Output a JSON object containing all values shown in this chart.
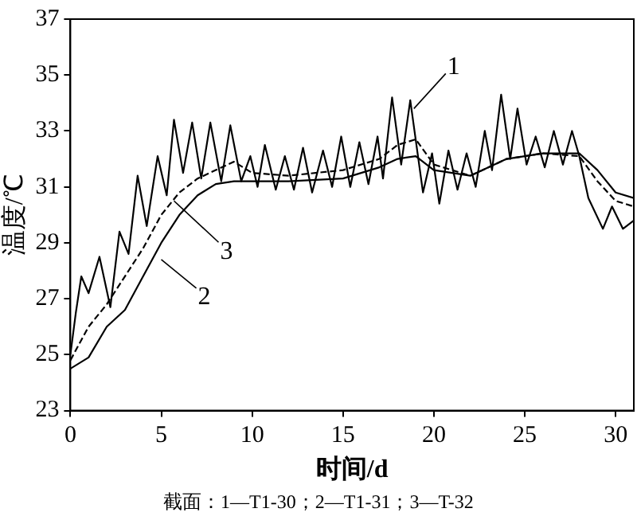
{
  "chart_data": {
    "type": "line",
    "xlabel": "时间/d",
    "ylabel": "温度/℃",
    "xlim": [
      0,
      31
    ],
    "xticks": [
      0,
      5,
      10,
      15,
      20,
      25,
      30
    ],
    "ylim": [
      23,
      37
    ],
    "yticks": [
      23,
      25,
      27,
      29,
      31,
      33,
      35,
      37
    ],
    "grid": false,
    "legend": false,
    "marker": "none",
    "series": [
      {
        "color": "#000000",
        "line_style": "solid",
        "x": [
          0,
          0.3,
          0.6,
          1.0,
          1.6,
          2.2,
          2.7,
          3.2,
          3.7,
          4.2,
          4.8,
          5.3,
          5.7,
          6.2,
          6.7,
          7.2,
          7.7,
          8.3,
          8.8,
          9.4,
          9.9,
          10.3,
          10.7,
          11.3,
          11.8,
          12.3,
          12.8,
          13.3,
          13.9,
          14.4,
          14.9,
          15.4,
          15.9,
          16.4,
          16.9,
          17.2,
          17.7,
          18.2,
          18.7,
          19.4,
          19.9,
          20.3,
          20.8,
          21.3,
          21.8,
          22.3,
          22.8,
          23.2,
          23.7,
          24.2,
          24.6,
          25.1,
          25.6,
          26.1,
          26.6,
          27.1,
          27.6,
          28.0,
          28.5,
          29.3,
          29.8,
          30.4,
          31
        ],
        "values": [
          25.0,
          26.5,
          27.8,
          27.2,
          28.5,
          26.7,
          29.4,
          28.6,
          31.4,
          29.6,
          32.1,
          30.7,
          33.4,
          31.5,
          33.3,
          31.3,
          33.3,
          31.2,
          33.2,
          31.2,
          32.1,
          31.0,
          32.5,
          30.9,
          32.1,
          30.9,
          32.4,
          30.8,
          32.3,
          31.0,
          32.8,
          31.0,
          32.6,
          31.1,
          32.8,
          31.3,
          34.2,
          31.8,
          34.1,
          30.8,
          32.2,
          30.4,
          32.3,
          30.9,
          32.2,
          31.0,
          33.0,
          31.6,
          34.3,
          32.0,
          33.8,
          31.8,
          32.8,
          31.7,
          33.0,
          31.8,
          33.0,
          32.1,
          30.6,
          29.5,
          30.3,
          29.5,
          29.8
        ]
      },
      {
        "color": "#000000",
        "line_style": "solid",
        "x": [
          0,
          1,
          2,
          3,
          4,
          5,
          6,
          7,
          8,
          9,
          10,
          12,
          15,
          17,
          18,
          19,
          20,
          22,
          24,
          26,
          28,
          29,
          30,
          31
        ],
        "values": [
          24.5,
          24.9,
          26.0,
          26.6,
          27.8,
          29.0,
          30.0,
          30.7,
          31.1,
          31.2,
          31.2,
          31.2,
          31.3,
          31.7,
          32.0,
          32.1,
          31.6,
          31.4,
          32.0,
          32.2,
          32.2,
          31.6,
          30.8,
          30.6
        ]
      },
      {
        "color": "#000000",
        "line_style": "dashed",
        "x": [
          0,
          1,
          2,
          3,
          4,
          5,
          6,
          7,
          8,
          9,
          10,
          12,
          15,
          17,
          18,
          19,
          20,
          22,
          24,
          26,
          28,
          29,
          30,
          31
        ],
        "values": [
          24.8,
          26.0,
          26.8,
          27.8,
          28.8,
          30.0,
          30.8,
          31.3,
          31.6,
          31.9,
          31.5,
          31.4,
          31.6,
          32.0,
          32.5,
          32.7,
          31.8,
          31.4,
          32.0,
          32.2,
          32.1,
          31.2,
          30.5,
          30.3
        ]
      }
    ],
    "annotations": [
      {
        "text": "1",
        "x": 18.9,
        "y": 33.8
      },
      {
        "text": "2",
        "x": 5.0,
        "y": 28.4
      },
      {
        "text": "3",
        "x": 5.7,
        "y": 30.5
      },
      "截面：1—T1-30；2—T1-31；3—T-32"
    ]
  }
}
